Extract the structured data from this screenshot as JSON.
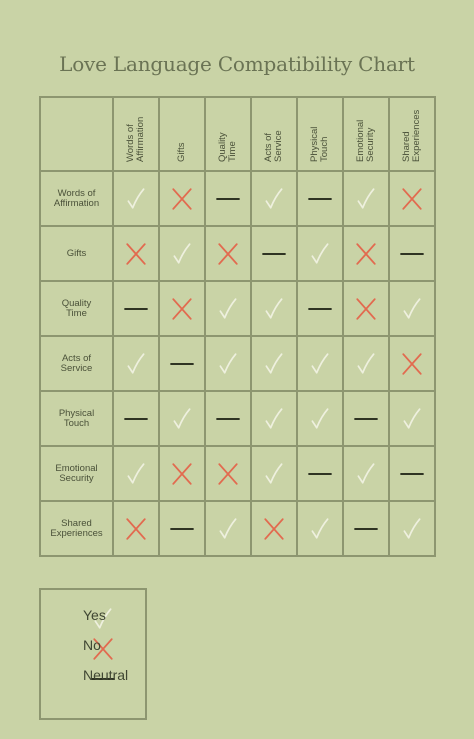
{
  "title": "Love Language Compatibility Chart",
  "columns": [
    "Words of\nAffirmation",
    "Gifts",
    "Quality\nTime",
    "Acts of\nService",
    "Physical\nTouch",
    "Emotional\nSecurity",
    "Shared\nExperiences"
  ],
  "rows": [
    {
      "label": "Words of\nAffirmation",
      "cells": [
        "yes",
        "no",
        "neutral",
        "yes",
        "neutral",
        "yes",
        "no"
      ]
    },
    {
      "label": "Gifts",
      "cells": [
        "no",
        "yes",
        "no",
        "neutral",
        "yes",
        "no",
        "neutral"
      ]
    },
    {
      "label": "Quality\nTime",
      "cells": [
        "neutral",
        "no",
        "yes",
        "yes",
        "neutral",
        "no",
        "yes"
      ]
    },
    {
      "label": "Acts of\nService",
      "cells": [
        "yes",
        "neutral",
        "yes",
        "yes",
        "yes",
        "yes",
        "no"
      ]
    },
    {
      "label": "Physical\nTouch",
      "cells": [
        "neutral",
        "yes",
        "neutral",
        "yes",
        "yes",
        "neutral",
        "yes"
      ]
    },
    {
      "label": "Emotional\nSecurity",
      "cells": [
        "yes",
        "no",
        "no",
        "yes",
        "neutral",
        "yes",
        "neutral"
      ]
    },
    {
      "label": "Shared\nExperiences",
      "cells": [
        "no",
        "neutral",
        "yes",
        "no",
        "yes",
        "neutral",
        "yes"
      ]
    }
  ],
  "legend": [
    {
      "symbol": "yes",
      "label": "Yes"
    },
    {
      "symbol": "no",
      "label": "No"
    },
    {
      "symbol": "neutral",
      "label": "Neutral"
    }
  ],
  "colors": {
    "background": "#c9d3a6",
    "yes": "#eef0de",
    "no": "#e26a4f",
    "neutral": "#2f3423",
    "grid": "#8d9670"
  },
  "icons": {
    "yes": "check-icon",
    "no": "cross-icon",
    "neutral": "dash-icon"
  }
}
